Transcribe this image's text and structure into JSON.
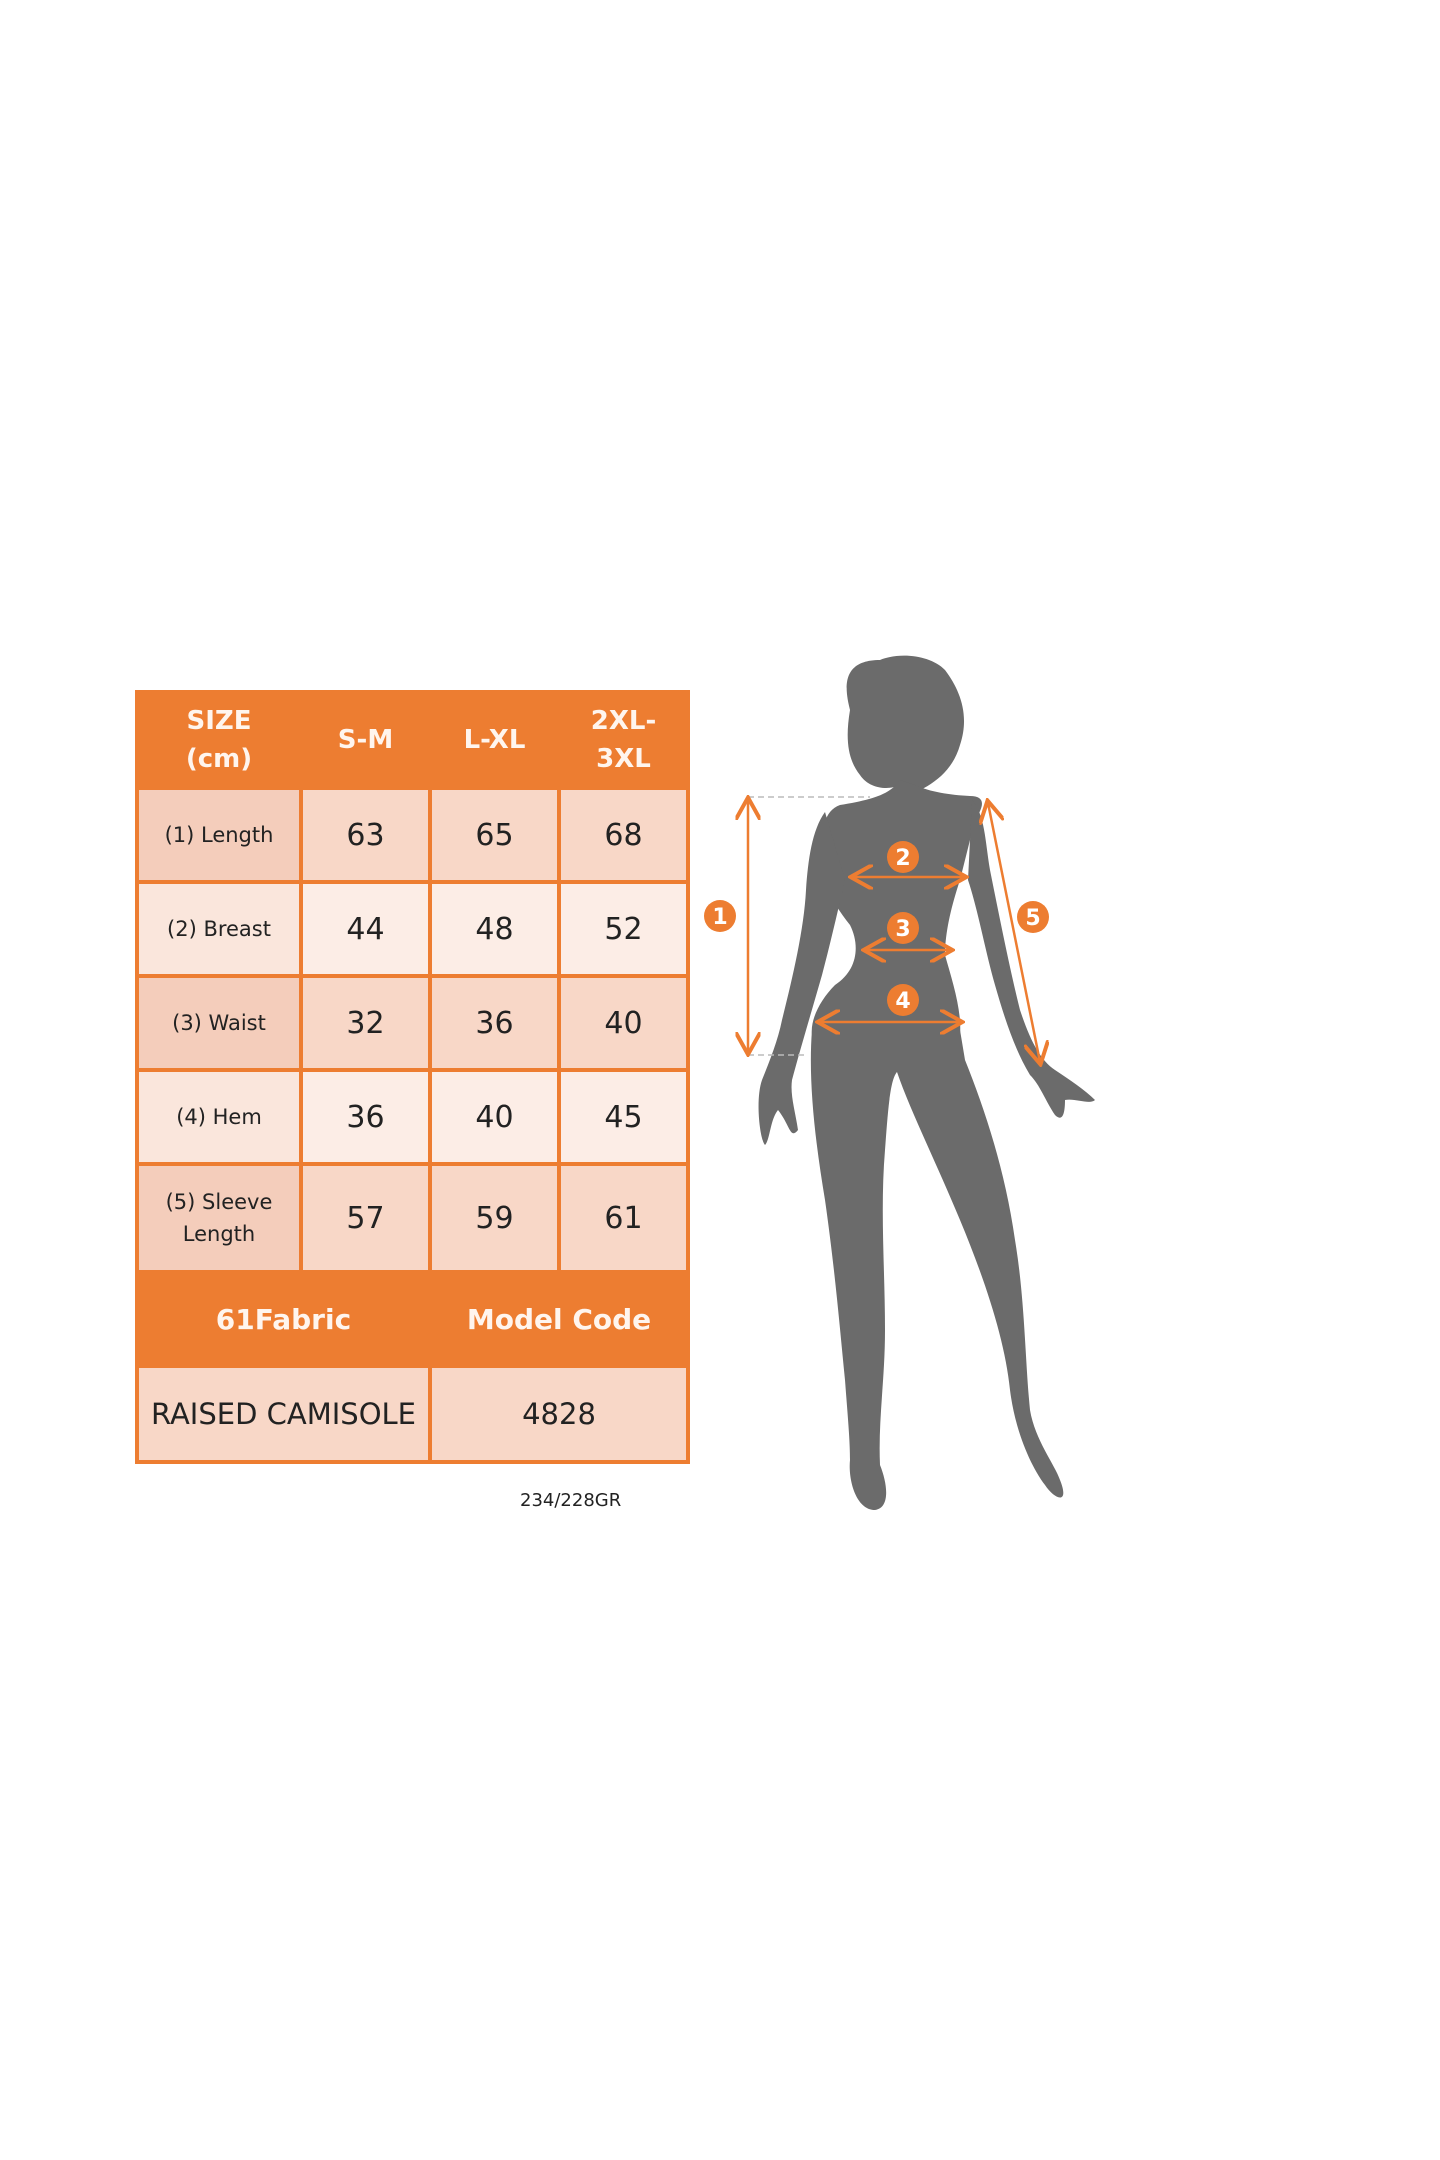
{
  "size_table": {
    "header": [
      "SIZE\n(cm)",
      "S-M",
      "L-XL",
      "2XL-\n3XL"
    ],
    "header_lines": {
      "size": [
        "SIZE",
        "(cm)"
      ],
      "xxl": [
        "2XL-",
        "3XL"
      ]
    },
    "rows": [
      {
        "label": "(1) Length",
        "values": [
          "63",
          "65",
          "68"
        ]
      },
      {
        "label": "(2) Breast",
        "values": [
          "44",
          "48",
          "52"
        ]
      },
      {
        "label": "(3) Waist",
        "values": [
          "32",
          "36",
          "40"
        ]
      },
      {
        "label": "(4) Hem",
        "values": [
          "36",
          "40",
          "45"
        ]
      },
      {
        "label_lines": [
          "(5) Sleeve",
          "Length"
        ],
        "values": [
          "57",
          "59",
          "61"
        ]
      }
    ],
    "footer_header": [
      "61Fabric",
      "Model Code"
    ],
    "footer_values": [
      "RAISED CAMISOLE",
      "4828"
    ]
  },
  "caption": "234/228GR",
  "figure": {
    "markers": [
      "1",
      "2",
      "3",
      "4",
      "5"
    ],
    "accent_color": "#ED7D31",
    "silhouette_color": "#6b6b6b"
  }
}
